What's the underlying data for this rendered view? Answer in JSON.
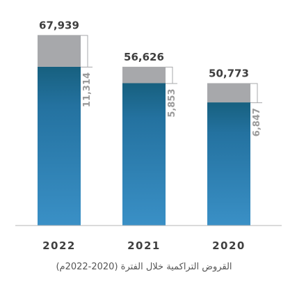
{
  "chart_data": {
    "type": "bar",
    "stacked": true,
    "categories": [
      "2022",
      "2021",
      "2020"
    ],
    "totals": [
      "67,939",
      "56,626",
      "50,773"
    ],
    "series": [
      {
        "values": [
          56625,
          50773,
          43926
        ],
        "color": "#2a7fb0"
      },
      {
        "values": [
          11314,
          5853,
          6847
        ],
        "labels": [
          "11,314",
          "5,853",
          "6,847"
        ],
        "color": "#a7a8ab"
      }
    ],
    "ylim": [
      0,
      72000
    ],
    "caption": "القروض التراكمية خلال الفترة (2020-2022م)",
    "grid": false,
    "legend": "none"
  }
}
